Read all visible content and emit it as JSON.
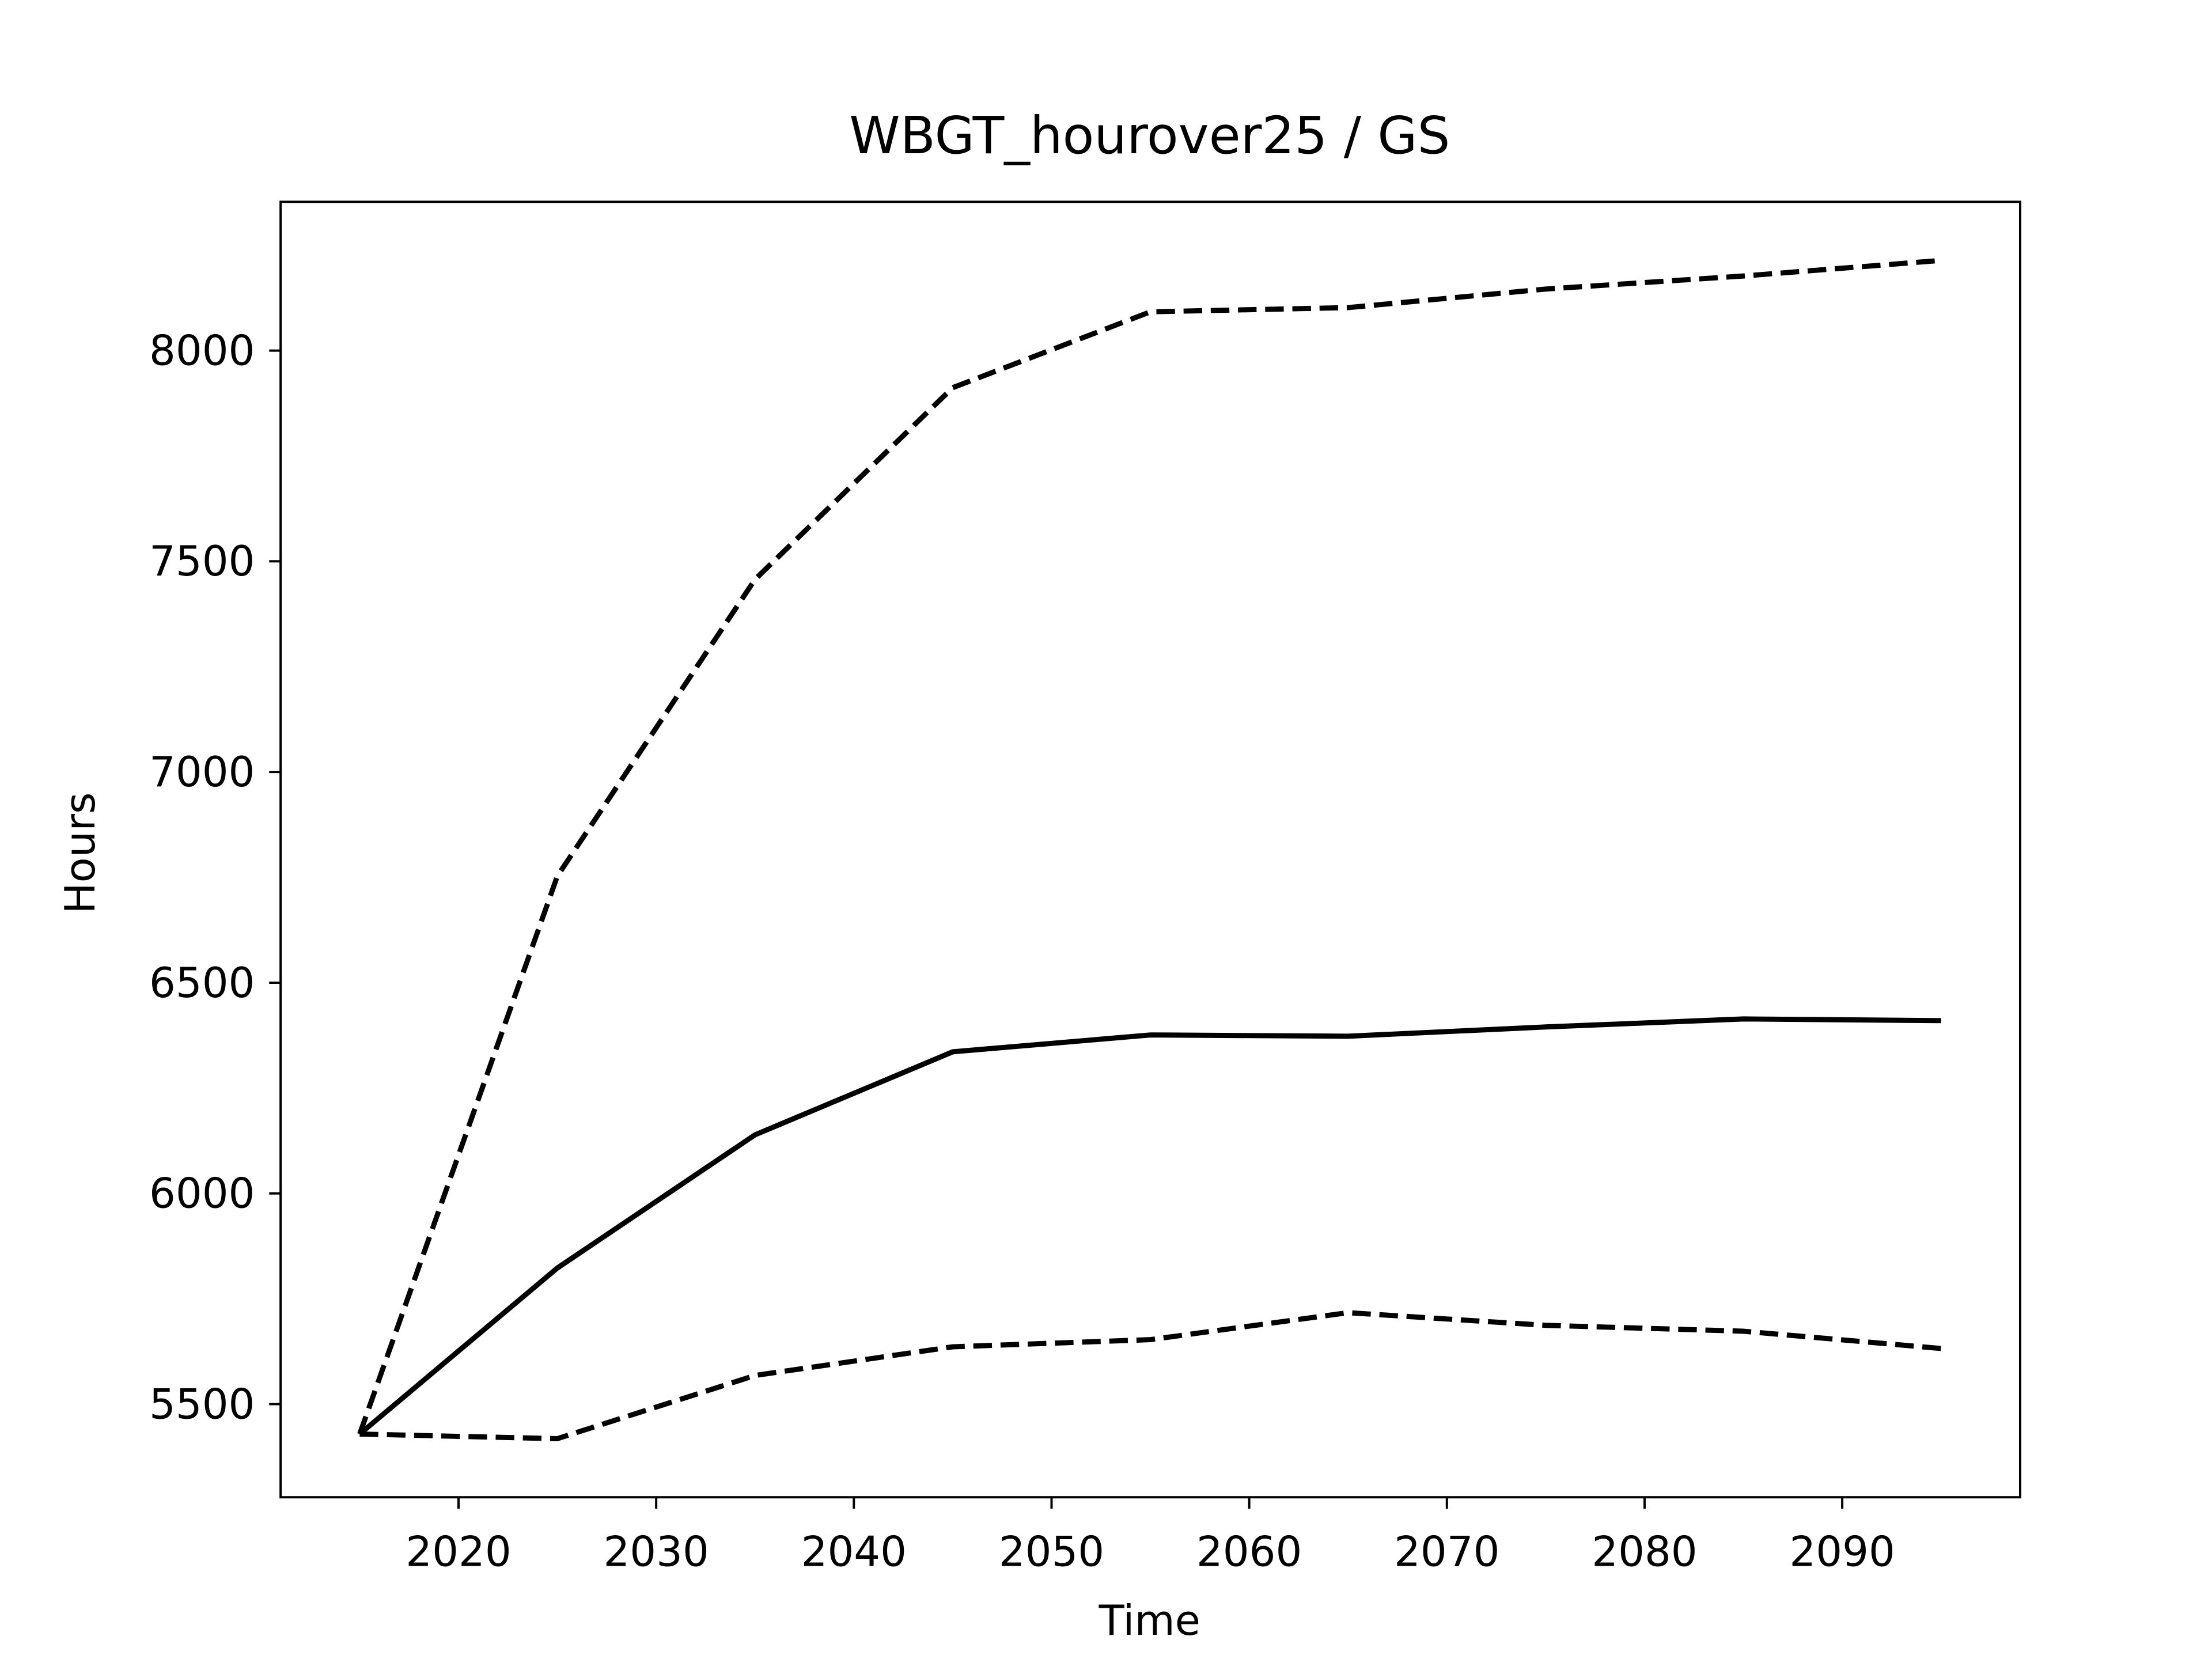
{
  "chart_data": {
    "type": "line",
    "title": "WBGT_hourover25 / GS",
    "xlabel": "Time",
    "ylabel": "Hours",
    "x": [
      2015,
      2025,
      2035,
      2045,
      2055,
      2065,
      2075,
      2085,
      2095
    ],
    "series": [
      {
        "color": "#000000",
        "linestyle": "solid",
        "values": [
          5429,
          5823,
          6139,
          6336,
          6376,
          6373,
          6395,
          6414,
          6410
        ]
      },
      {
        "color": "#000000",
        "linestyle": "dashed",
        "values": [
          5429,
          6753,
          7457,
          7912,
          8092,
          8102,
          8146,
          8177,
          8214
        ]
      },
      {
        "color": "#000000",
        "linestyle": "dashed",
        "values": [
          5429,
          5418,
          5568,
          5636,
          5653,
          5717,
          5687,
          5673,
          5632
        ]
      }
    ],
    "xlim": [
      2011,
      2099
    ],
    "ylim": [
      5279,
      8353
    ],
    "xticks": [
      2020,
      2030,
      2040,
      2050,
      2060,
      2070,
      2080,
      2090
    ],
    "yticks": [
      5500,
      6000,
      6500,
      7000,
      7500,
      8000
    ]
  }
}
